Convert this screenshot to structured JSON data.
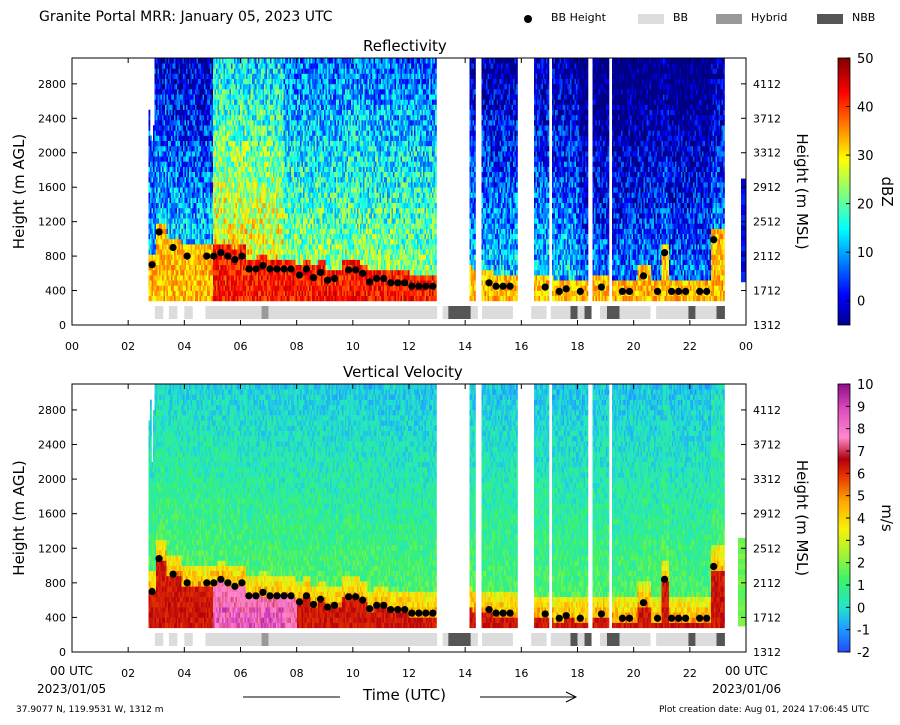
{
  "header": {
    "title": "Granite Portal MRR:  January 05, 2023 UTC",
    "legend": [
      {
        "label": "BB Height",
        "kind": "dot",
        "color": "#000000"
      },
      {
        "label": "BB",
        "kind": "bar",
        "color": "#dcdcdc"
      },
      {
        "label": "Hybrid",
        "kind": "bar",
        "color": "#999999"
      },
      {
        "label": "NBB",
        "kind": "bar",
        "color": "#555555"
      }
    ]
  },
  "footer": {
    "location": "37.9077 N, 119.9531 W, 1312 m",
    "created": "Plot creation date: Aug 01, 2024 17:06:45 UTC",
    "xlabel": "Time (UTC)",
    "start_label": "00 UTC",
    "start_date": "2023/01/05",
    "end_label": "00 UTC",
    "end_date": "2023/01/06"
  },
  "chart_data": [
    {
      "type": "heatmap",
      "title": "Reflectivity",
      "ylabel": "Height (m AGL)",
      "ylabel_right": "Height (m MSL)",
      "colorbar_label": "dBZ",
      "clim": [
        -5,
        50
      ],
      "colorbar_ticks": [
        "0",
        "10",
        "20",
        "30",
        "40",
        "50"
      ],
      "colormap": "jet",
      "xlim": [
        0,
        24
      ],
      "ylim": [
        0,
        3100
      ],
      "x_ticks": [
        "00",
        "02",
        "04",
        "06",
        "08",
        "10",
        "12",
        "14",
        "16",
        "18",
        "20",
        "22",
        "00"
      ],
      "y_ticks": [
        0,
        400,
        800,
        1200,
        1600,
        2000,
        2400,
        2800
      ],
      "y_ticks_right": [
        "1312",
        "1712",
        "2112",
        "2512",
        "2912",
        "3312",
        "3712",
        "4112"
      ]
    },
    {
      "type": "heatmap",
      "title": "Vertical Velocity",
      "ylabel": "Height (m AGL)",
      "ylabel_right": "Height (m MSL)",
      "colorbar_label": "m/s",
      "clim": [
        -2,
        10
      ],
      "colorbar_ticks": [
        "-2",
        "-1",
        "0",
        "1",
        "2",
        "3",
        "4",
        "5",
        "6",
        "7",
        "8",
        "9",
        "10"
      ],
      "colormap": "velocity",
      "xlim": [
        0,
        24
      ],
      "ylim": [
        0,
        3100
      ],
      "x_ticks": [
        "",
        "02",
        "04",
        "06",
        "08",
        "10",
        "12",
        "14",
        "16",
        "18",
        "20",
        "22",
        ""
      ],
      "y_ticks": [
        0,
        400,
        800,
        1200,
        1600,
        2000,
        2400,
        2800
      ],
      "y_ticks_right": [
        "1312",
        "1712",
        "2112",
        "2512",
        "2912",
        "3312",
        "3712",
        "4112"
      ]
    }
  ],
  "bb_height_points": [
    {
      "x": 2.85,
      "y": 700
    },
    {
      "x": 3.1,
      "y": 1080
    },
    {
      "x": 3.6,
      "y": 900
    },
    {
      "x": 4.1,
      "y": 800
    },
    {
      "x": 4.8,
      "y": 800
    },
    {
      "x": 5.05,
      "y": 800
    },
    {
      "x": 5.3,
      "y": 840
    },
    {
      "x": 5.55,
      "y": 800
    },
    {
      "x": 5.8,
      "y": 760
    },
    {
      "x": 6.05,
      "y": 800
    },
    {
      "x": 6.3,
      "y": 650
    },
    {
      "x": 6.55,
      "y": 650
    },
    {
      "x": 6.8,
      "y": 690
    },
    {
      "x": 7.05,
      "y": 650
    },
    {
      "x": 7.3,
      "y": 650
    },
    {
      "x": 7.55,
      "y": 650
    },
    {
      "x": 7.8,
      "y": 650
    },
    {
      "x": 8.1,
      "y": 580
    },
    {
      "x": 8.35,
      "y": 650
    },
    {
      "x": 8.6,
      "y": 550
    },
    {
      "x": 8.85,
      "y": 610
    },
    {
      "x": 9.1,
      "y": 520
    },
    {
      "x": 9.35,
      "y": 540
    },
    {
      "x": 9.85,
      "y": 640
    },
    {
      "x": 10.1,
      "y": 640
    },
    {
      "x": 10.35,
      "y": 600
    },
    {
      "x": 10.6,
      "y": 500
    },
    {
      "x": 10.85,
      "y": 540
    },
    {
      "x": 11.1,
      "y": 540
    },
    {
      "x": 11.35,
      "y": 490
    },
    {
      "x": 11.6,
      "y": 490
    },
    {
      "x": 11.85,
      "y": 490
    },
    {
      "x": 12.1,
      "y": 450
    },
    {
      "x": 12.35,
      "y": 450
    },
    {
      "x": 12.6,
      "y": 450
    },
    {
      "x": 12.85,
      "y": 450
    },
    {
      "x": 14.85,
      "y": 490
    },
    {
      "x": 15.1,
      "y": 450
    },
    {
      "x": 15.35,
      "y": 450
    },
    {
      "x": 15.6,
      "y": 450
    },
    {
      "x": 16.85,
      "y": 440
    },
    {
      "x": 17.35,
      "y": 390
    },
    {
      "x": 17.6,
      "y": 420
    },
    {
      "x": 18.1,
      "y": 390
    },
    {
      "x": 18.85,
      "y": 440
    },
    {
      "x": 19.6,
      "y": 390
    },
    {
      "x": 19.85,
      "y": 390
    },
    {
      "x": 20.35,
      "y": 570
    },
    {
      "x": 20.85,
      "y": 390
    },
    {
      "x": 21.1,
      "y": 840
    },
    {
      "x": 21.35,
      "y": 390
    },
    {
      "x": 21.6,
      "y": 390
    },
    {
      "x": 21.85,
      "y": 390
    },
    {
      "x": 22.35,
      "y": 390
    },
    {
      "x": 22.6,
      "y": 390
    },
    {
      "x": 22.85,
      "y": 990
    }
  ],
  "bb_type_segments": [
    {
      "start": 2.95,
      "end": 3.25,
      "type": "BB"
    },
    {
      "start": 3.45,
      "end": 3.75,
      "type": "BB"
    },
    {
      "start": 4.0,
      "end": 4.3,
      "type": "BB"
    },
    {
      "start": 4.75,
      "end": 6.75,
      "type": "BB"
    },
    {
      "start": 6.75,
      "end": 7.0,
      "type": "Hybrid"
    },
    {
      "start": 7.0,
      "end": 13.0,
      "type": "BB"
    },
    {
      "start": 13.2,
      "end": 13.4,
      "type": "BB"
    },
    {
      "start": 13.4,
      "end": 14.2,
      "type": "NBB"
    },
    {
      "start": 14.2,
      "end": 14.45,
      "type": "BB"
    },
    {
      "start": 14.6,
      "end": 15.7,
      "type": "BB"
    },
    {
      "start": 16.35,
      "end": 16.9,
      "type": "BB"
    },
    {
      "start": 17.05,
      "end": 17.75,
      "type": "BB"
    },
    {
      "start": 17.75,
      "end": 18.0,
      "type": "NBB"
    },
    {
      "start": 18.0,
      "end": 18.25,
      "type": "BB"
    },
    {
      "start": 18.25,
      "end": 18.5,
      "type": "NBB"
    },
    {
      "start": 18.8,
      "end": 19.05,
      "type": "BB"
    },
    {
      "start": 19.05,
      "end": 19.5,
      "type": "NBB"
    },
    {
      "start": 19.5,
      "end": 20.6,
      "type": "BB"
    },
    {
      "start": 20.8,
      "end": 21.95,
      "type": "BB"
    },
    {
      "start": 21.95,
      "end": 22.2,
      "type": "NBB"
    },
    {
      "start": 22.2,
      "end": 22.95,
      "type": "BB"
    },
    {
      "start": 22.95,
      "end": 23.25,
      "type": "NBB"
    }
  ]
}
